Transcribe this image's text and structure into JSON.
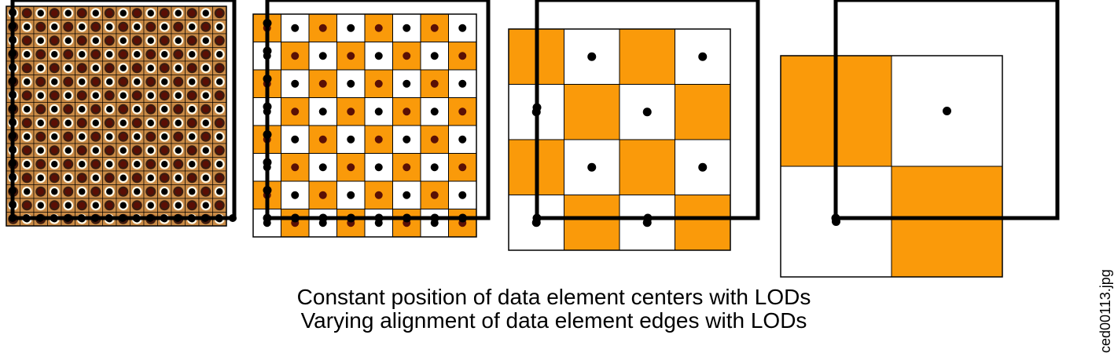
{
  "caption": {
    "line1": "Constant position of data element centers with LODs",
    "line2": "Varying alignment of data element edges with LODs"
  },
  "side_label": "ced00113.jpg",
  "colors": {
    "orange": "#FA9A0A",
    "dark_orange": "#C98A45",
    "cream": "#FFF8E6",
    "black": "#000000",
    "white": "#FFFFFF"
  },
  "panels": [
    {
      "name": "lod-0",
      "grid_cells": 16,
      "dot_style": "light-dark"
    },
    {
      "name": "lod-1",
      "grid_cells": 8,
      "dot_style": "center-dots"
    },
    {
      "name": "lod-2",
      "grid_cells": 4,
      "dot_style": "center-dots"
    },
    {
      "name": "lod-3",
      "grid_cells": 2,
      "dot_style": "center-dots"
    }
  ]
}
